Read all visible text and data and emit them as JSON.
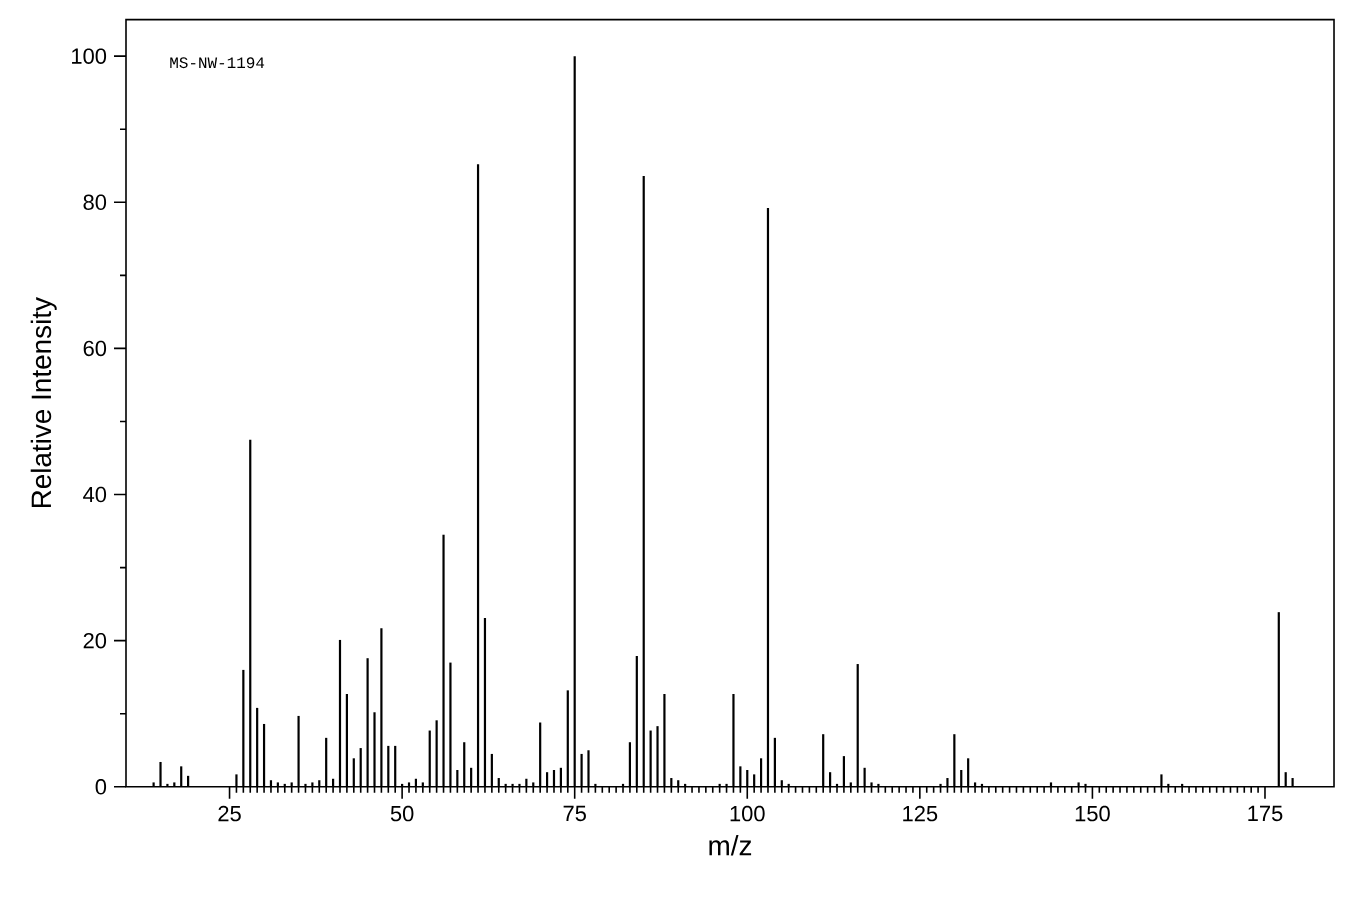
{
  "chart_data": {
    "type": "bar",
    "xlabel": "m/z",
    "ylabel": "Relative Intensity",
    "annotations": [
      "MS-NW-1194"
    ],
    "color": "#000000",
    "x": [
      14,
      15,
      16,
      17,
      18,
      19,
      26,
      27,
      28,
      29,
      30,
      31,
      32,
      33,
      34,
      35,
      36,
      37,
      38,
      39,
      40,
      41,
      42,
      43,
      44,
      45,
      46,
      47,
      48,
      49,
      50,
      51,
      52,
      53,
      54,
      55,
      56,
      57,
      58,
      59,
      60,
      61,
      62,
      63,
      64,
      65,
      66,
      67,
      68,
      69,
      70,
      71,
      72,
      73,
      74,
      75,
      76,
      77,
      78,
      82,
      83,
      84,
      85,
      86,
      87,
      88,
      89,
      90,
      91,
      96,
      97,
      98,
      99,
      100,
      101,
      102,
      103,
      104,
      105,
      106,
      111,
      112,
      113,
      114,
      115,
      116,
      117,
      118,
      119,
      128,
      129,
      130,
      131,
      132,
      133,
      134,
      144,
      148,
      149,
      160,
      161,
      163,
      177,
      178,
      179
    ],
    "values": [
      0.6,
      3.4,
      0.4,
      0.6,
      2.8,
      1.5,
      1.7,
      16,
      47.5,
      10.8,
      8.6,
      0.9,
      0.6,
      0.4,
      0.6,
      9.7,
      0.4,
      0.6,
      0.9,
      6.7,
      1.1,
      20.1,
      12.7,
      3.9,
      5.3,
      17.6,
      10.2,
      21.7,
      5.6,
      5.6,
      0.4,
      0.6,
      1.1,
      0.6,
      7.7,
      9.1,
      34.5,
      17,
      2.3,
      6.1,
      2.6,
      85.2,
      23.1,
      4.5,
      1.2,
      0.4,
      0.4,
      0.4,
      1.1,
      0.6,
      8.8,
      2,
      2.3,
      2.6,
      13.2,
      100,
      4.5,
      5,
      0.4,
      0.4,
      6.1,
      17.9,
      83.6,
      7.7,
      8.3,
      12.7,
      1.2,
      0.9,
      0.4,
      0.4,
      0.4,
      12.7,
      2.8,
      2.3,
      1.7,
      3.9,
      79.2,
      6.7,
      0.9,
      0.4,
      7.2,
      2,
      0.4,
      4.2,
      0.6,
      16.8,
      2.6,
      0.6,
      0.4,
      0.4,
      1.2,
      7.2,
      2.3,
      3.9,
      0.6,
      0.4,
      0.6,
      0.6,
      0.4,
      1.7,
      0.4,
      0.4,
      23.9,
      2,
      1.2
    ],
    "xlim": [
      10,
      185
    ],
    "ylim": [
      0,
      105
    ],
    "xticks": [
      25,
      50,
      75,
      100,
      125,
      150,
      175
    ],
    "yticks": [
      0,
      20,
      40,
      60,
      80,
      100
    ]
  }
}
